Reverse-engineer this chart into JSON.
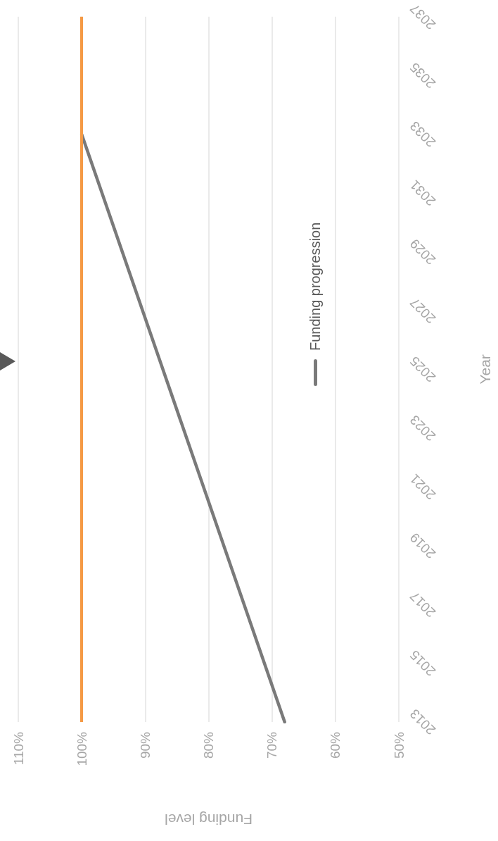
{
  "chart_data": {
    "type": "line",
    "xlabel": "Funding level",
    "ylabel": "Year",
    "series": [
      {
        "name": "Funding progression",
        "color": "#7a7a7a",
        "x": [
          68,
          100
        ],
        "values": [
          2013,
          2033
        ]
      }
    ],
    "xlim": [
      110,
      50
    ],
    "xticks": [
      {
        "value": 110,
        "label": "110%"
      },
      {
        "value": 100,
        "label": "100%"
      },
      {
        "value": 90,
        "label": "90%"
      },
      {
        "value": 80,
        "label": "80%"
      },
      {
        "value": 70,
        "label": "70%"
      },
      {
        "value": 60,
        "label": "60%"
      },
      {
        "value": 50,
        "label": "50%"
      }
    ],
    "ylim": [
      2013,
      2037
    ],
    "yticks": [
      2013,
      2015,
      2017,
      2019,
      2021,
      2023,
      2025,
      2027,
      2029,
      2031,
      2033,
      2035,
      2037
    ],
    "ref_lines": [
      {
        "axis": "x",
        "value": 100,
        "color": "#f59a45",
        "line_style": "solid"
      }
    ],
    "grid": "x",
    "legend": "right",
    "marker": "none",
    "line_style": "solid"
  }
}
